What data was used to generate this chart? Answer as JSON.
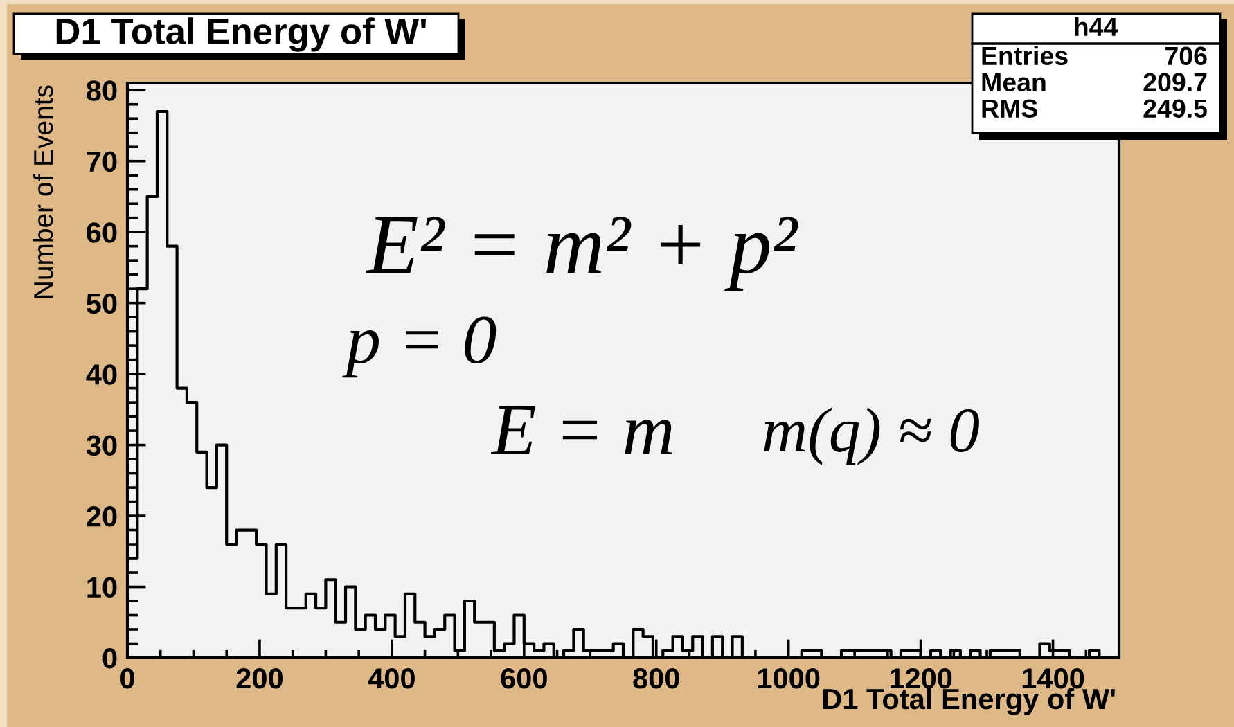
{
  "chart_data": {
    "type": "histogram",
    "title": "D1 Total Energy of W'",
    "xlabel": "D1 Total Energy of W'",
    "ylabel": "Number of Events",
    "bins": [
      0,
      15,
      30,
      45,
      60,
      75,
      90,
      105,
      120,
      135,
      150,
      165,
      180,
      195,
      210,
      225,
      240,
      255,
      270,
      285,
      300,
      315,
      330,
      345,
      360,
      375,
      390,
      405,
      420,
      435,
      450,
      465,
      480,
      495,
      510,
      525,
      540,
      555,
      570,
      585,
      600,
      615,
      630,
      645,
      660,
      675,
      690,
      705,
      720,
      735,
      750,
      765,
      780,
      795,
      810,
      825,
      840,
      855,
      870,
      885,
      900,
      915,
      930,
      945,
      960,
      975,
      990,
      1005,
      1020,
      1035,
      1050,
      1065,
      1080,
      1095,
      1110,
      1125,
      1140,
      1155,
      1170,
      1185,
      1200,
      1215,
      1230,
      1245,
      1260,
      1275,
      1290,
      1305,
      1320,
      1335,
      1350,
      1365,
      1380,
      1395,
      1410,
      1425,
      1440,
      1455,
      1470,
      1485,
      1500
    ],
    "values": [
      14,
      52,
      65,
      77,
      58,
      38,
      36,
      29,
      24,
      30,
      16,
      18,
      18,
      16,
      9,
      16,
      7,
      7,
      9,
      7,
      11,
      5,
      10,
      4,
      6,
      4,
      6,
      3,
      9,
      5,
      3,
      4,
      6,
      1,
      8,
      5,
      5,
      1,
      2,
      6,
      2,
      1,
      2,
      0,
      1,
      4,
      1,
      1,
      1,
      2,
      0,
      4,
      3,
      0,
      1,
      3,
      1,
      3,
      0,
      3,
      0,
      3,
      0,
      0,
      0,
      0,
      0,
      0,
      1,
      1,
      0,
      0,
      1,
      1,
      1,
      1,
      1,
      0,
      1,
      1,
      0,
      1,
      0,
      1,
      0,
      1,
      0,
      1,
      1,
      1,
      0,
      0,
      2,
      1,
      1,
      0,
      0,
      1,
      0,
      0
    ],
    "color": "#000000",
    "xlim": [
      0,
      1500
    ],
    "ylim": [
      0,
      81
    ],
    "xticks": [
      0,
      {
        "value": 50,
        "label": null
      },
      {
        "value": 100,
        "label": null
      },
      {
        "value": 150,
        "label": null
      },
      200,
      {
        "value": 250,
        "label": null
      },
      {
        "value": 300,
        "label": null
      },
      {
        "value": 350,
        "label": null
      },
      400,
      {
        "value": 450,
        "label": null
      },
      {
        "value": 500,
        "label": null
      },
      {
        "value": 550,
        "label": null
      },
      600,
      {
        "value": 650,
        "label": null
      },
      {
        "value": 700,
        "label": null
      },
      {
        "value": 750,
        "label": null
      },
      800,
      {
        "value": 850,
        "label": null
      },
      {
        "value": 900,
        "label": null
      },
      {
        "value": 950,
        "label": null
      },
      1000,
      {
        "value": 1050,
        "label": null
      },
      {
        "value": 1100,
        "label": null
      },
      {
        "value": 1150,
        "label": null
      },
      1200,
      {
        "value": 1250,
        "label": null
      },
      {
        "value": 1300,
        "label": null
      },
      {
        "value": 1350,
        "label": null
      },
      1400,
      {
        "value": 1450,
        "label": null
      }
    ],
    "yticks": [
      0,
      {
        "value": 2,
        "label": null
      },
      {
        "value": 4,
        "label": null
      },
      {
        "value": 6,
        "label": null
      },
      {
        "value": 8,
        "label": null
      },
      10,
      {
        "value": 12,
        "label": null
      },
      {
        "value": 14,
        "label": null
      },
      {
        "value": 16,
        "label": null
      },
      {
        "value": 18,
        "label": null
      },
      20,
      {
        "value": 22,
        "label": null
      },
      {
        "value": 24,
        "label": null
      },
      {
        "value": 26,
        "label": null
      },
      {
        "value": 28,
        "label": null
      },
      30,
      {
        "value": 32,
        "label": null
      },
      {
        "value": 34,
        "label": null
      },
      {
        "value": 36,
        "label": null
      },
      {
        "value": 38,
        "label": null
      },
      40,
      {
        "value": 42,
        "label": null
      },
      {
        "value": 44,
        "label": null
      },
      {
        "value": 46,
        "label": null
      },
      {
        "value": 48,
        "label": null
      },
      50,
      {
        "value": 52,
        "label": null
      },
      {
        "value": 54,
        "label": null
      },
      {
        "value": 56,
        "label": null
      },
      {
        "value": 58,
        "label": null
      },
      60,
      {
        "value": 62,
        "label": null
      },
      {
        "value": 64,
        "label": null
      },
      {
        "value": 66,
        "label": null
      },
      {
        "value": 68,
        "label": null
      },
      70,
      {
        "value": 72,
        "label": null
      },
      {
        "value": 74,
        "label": null
      },
      {
        "value": 76,
        "label": null
      },
      {
        "value": 78,
        "label": null
      },
      80
    ],
    "annotations": [
      "h44",
      "Entries",
      "706",
      "Mean",
      "209.7",
      "RMS",
      "249.5",
      "E² = m² + p²",
      "p = 0",
      "E = m",
      "m(q) ≈ 0"
    ]
  }
}
